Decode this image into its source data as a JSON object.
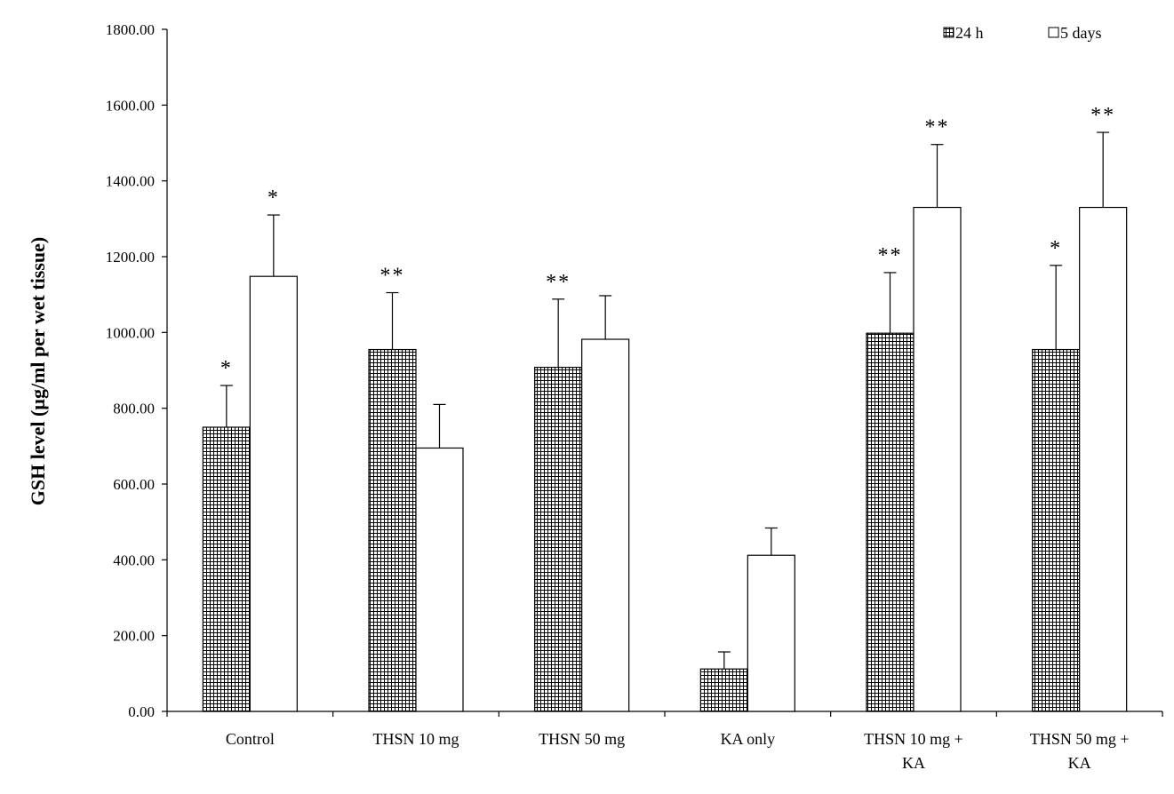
{
  "chart_data": {
    "type": "bar",
    "ylabel": "GSH level  (µg/ml per wet tissue)",
    "xlabel": "",
    "ylim": [
      0,
      1800
    ],
    "y_ticks": [
      0,
      200,
      400,
      600,
      800,
      1000,
      1200,
      1400,
      1600,
      1800
    ],
    "y_tick_labels": [
      "0.00",
      "200.00",
      "400.00",
      "600.00",
      "800.00",
      "1000.00",
      "1200.00",
      "1400.00",
      "1600.00",
      "1800.00"
    ],
    "grid": false,
    "legend_position": "top-right",
    "categories": [
      [
        "Control"
      ],
      [
        "THSN 10 mg"
      ],
      [
        "THSN 50 mg"
      ],
      [
        "KA only"
      ],
      [
        "THSN 10 mg +",
        "KA"
      ],
      [
        "THSN 50 mg +",
        "KA"
      ]
    ],
    "series": [
      {
        "name": "24 h",
        "pattern": "grid-hatch",
        "values": [
          750,
          955,
          908,
          112,
          998,
          955
        ],
        "errors": [
          110,
          150,
          180,
          45,
          160,
          222
        ],
        "significance": [
          "*",
          "**",
          "**",
          "",
          "**",
          "*"
        ]
      },
      {
        "name": "5 days",
        "pattern": "white",
        "values": [
          1148,
          695,
          982,
          412,
          1330,
          1330
        ],
        "errors": [
          162,
          115,
          115,
          72,
          166,
          198
        ],
        "significance": [
          "*",
          "",
          "",
          "",
          "**",
          "**"
        ]
      }
    ]
  }
}
